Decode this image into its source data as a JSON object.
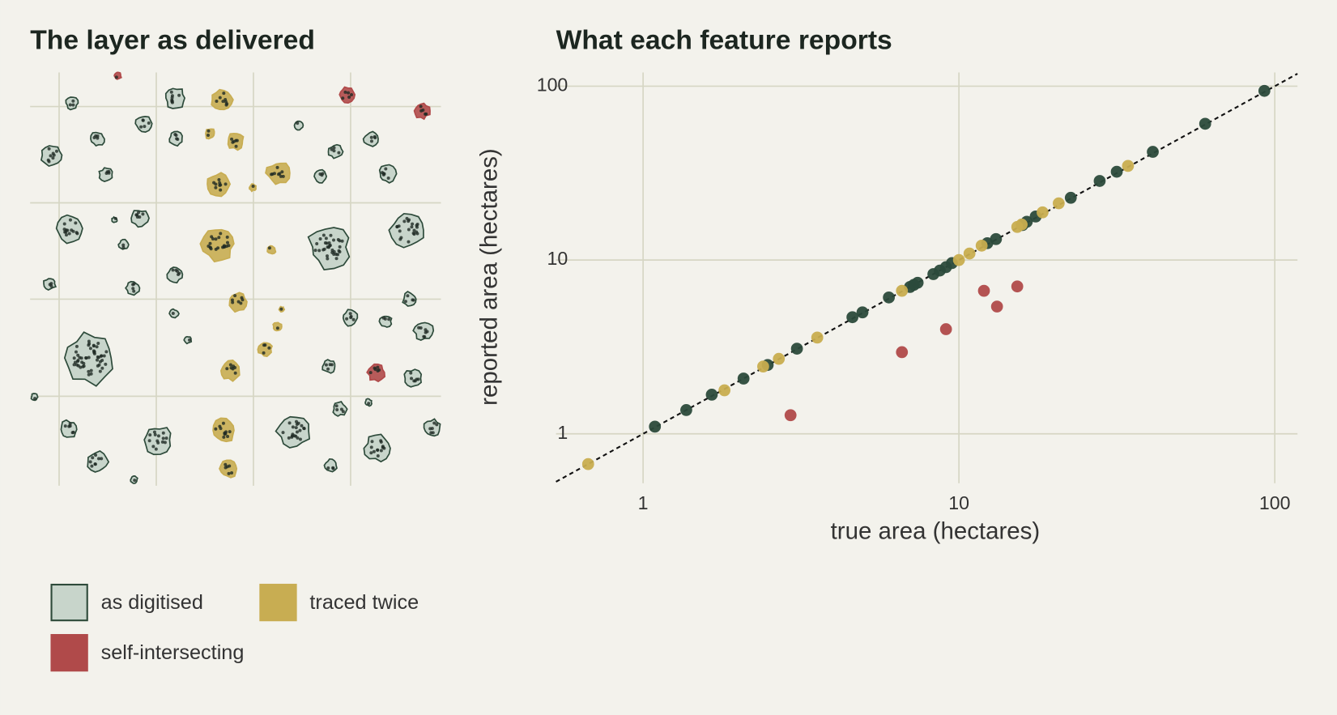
{
  "chart_data": [
    {
      "type": "map",
      "title": "The layer as delivered",
      "legend": [
        {
          "name": "as digitised",
          "color": "#c8d5cb",
          "edge": "#2d4a3a"
        },
        {
          "name": "traced twice",
          "color": "#c8ad52",
          "edge": "#c8ad52"
        },
        {
          "name": "self-intersecting",
          "color": "#b04a4a",
          "edge": "#b04a4a"
        }
      ]
    },
    {
      "type": "scatter",
      "title": "What each feature reports",
      "x_label": "true area (hectares)",
      "y_label": "reported area (hectares)",
      "log_x": true,
      "log_y": true,
      "grid": true,
      "diagonal": true,
      "xlim": [
        0.53,
        118
      ],
      "ylim": [
        0.52,
        120
      ],
      "xticks": [
        1,
        10,
        100
      ],
      "yticks": [
        1,
        10,
        100
      ],
      "series": [
        {
          "color": "#2b4a3b",
          "x": [
            1.09,
            1.37,
            1.65,
            2.08,
            2.48,
            3.07,
            4.6,
            4.95,
            6.0,
            7.0,
            7.2,
            7.4,
            8.3,
            8.7,
            9.1,
            9.5,
            12.3,
            13.1,
            15.9,
            16.4,
            17.5,
            22.6,
            27.9,
            31.6,
            41.1,
            60.2,
            92.7
          ],
          "y": [
            1.1,
            1.37,
            1.68,
            2.08,
            2.49,
            3.09,
            4.69,
            5.0,
            6.09,
            7.0,
            7.2,
            7.4,
            8.3,
            8.7,
            9.1,
            9.6,
            12.5,
            13.2,
            15.9,
            16.6,
            17.8,
            22.8,
            28.5,
            32.2,
            41.9,
            60.8,
            94.0
          ]
        },
        {
          "color": "#c8ad4f",
          "x": [
            0.67,
            1.81,
            2.4,
            2.69,
            3.56,
            6.6,
            10,
            10.8,
            11.8,
            15.3,
            15.8,
            18.4,
            20.7,
            34.3
          ],
          "y": [
            0.67,
            1.78,
            2.44,
            2.7,
            3.58,
            6.65,
            10,
            10.9,
            12.1,
            15.5,
            16.0,
            18.8,
            21.2,
            34.8
          ]
        },
        {
          "color": "#b04a4a",
          "x": [
            2.93,
            6.6,
            9.1,
            12.0,
            13.2,
            15.3
          ],
          "y": [
            1.28,
            2.95,
            4.0,
            6.65,
            5.4,
            7.05
          ]
        }
      ]
    }
  ]
}
